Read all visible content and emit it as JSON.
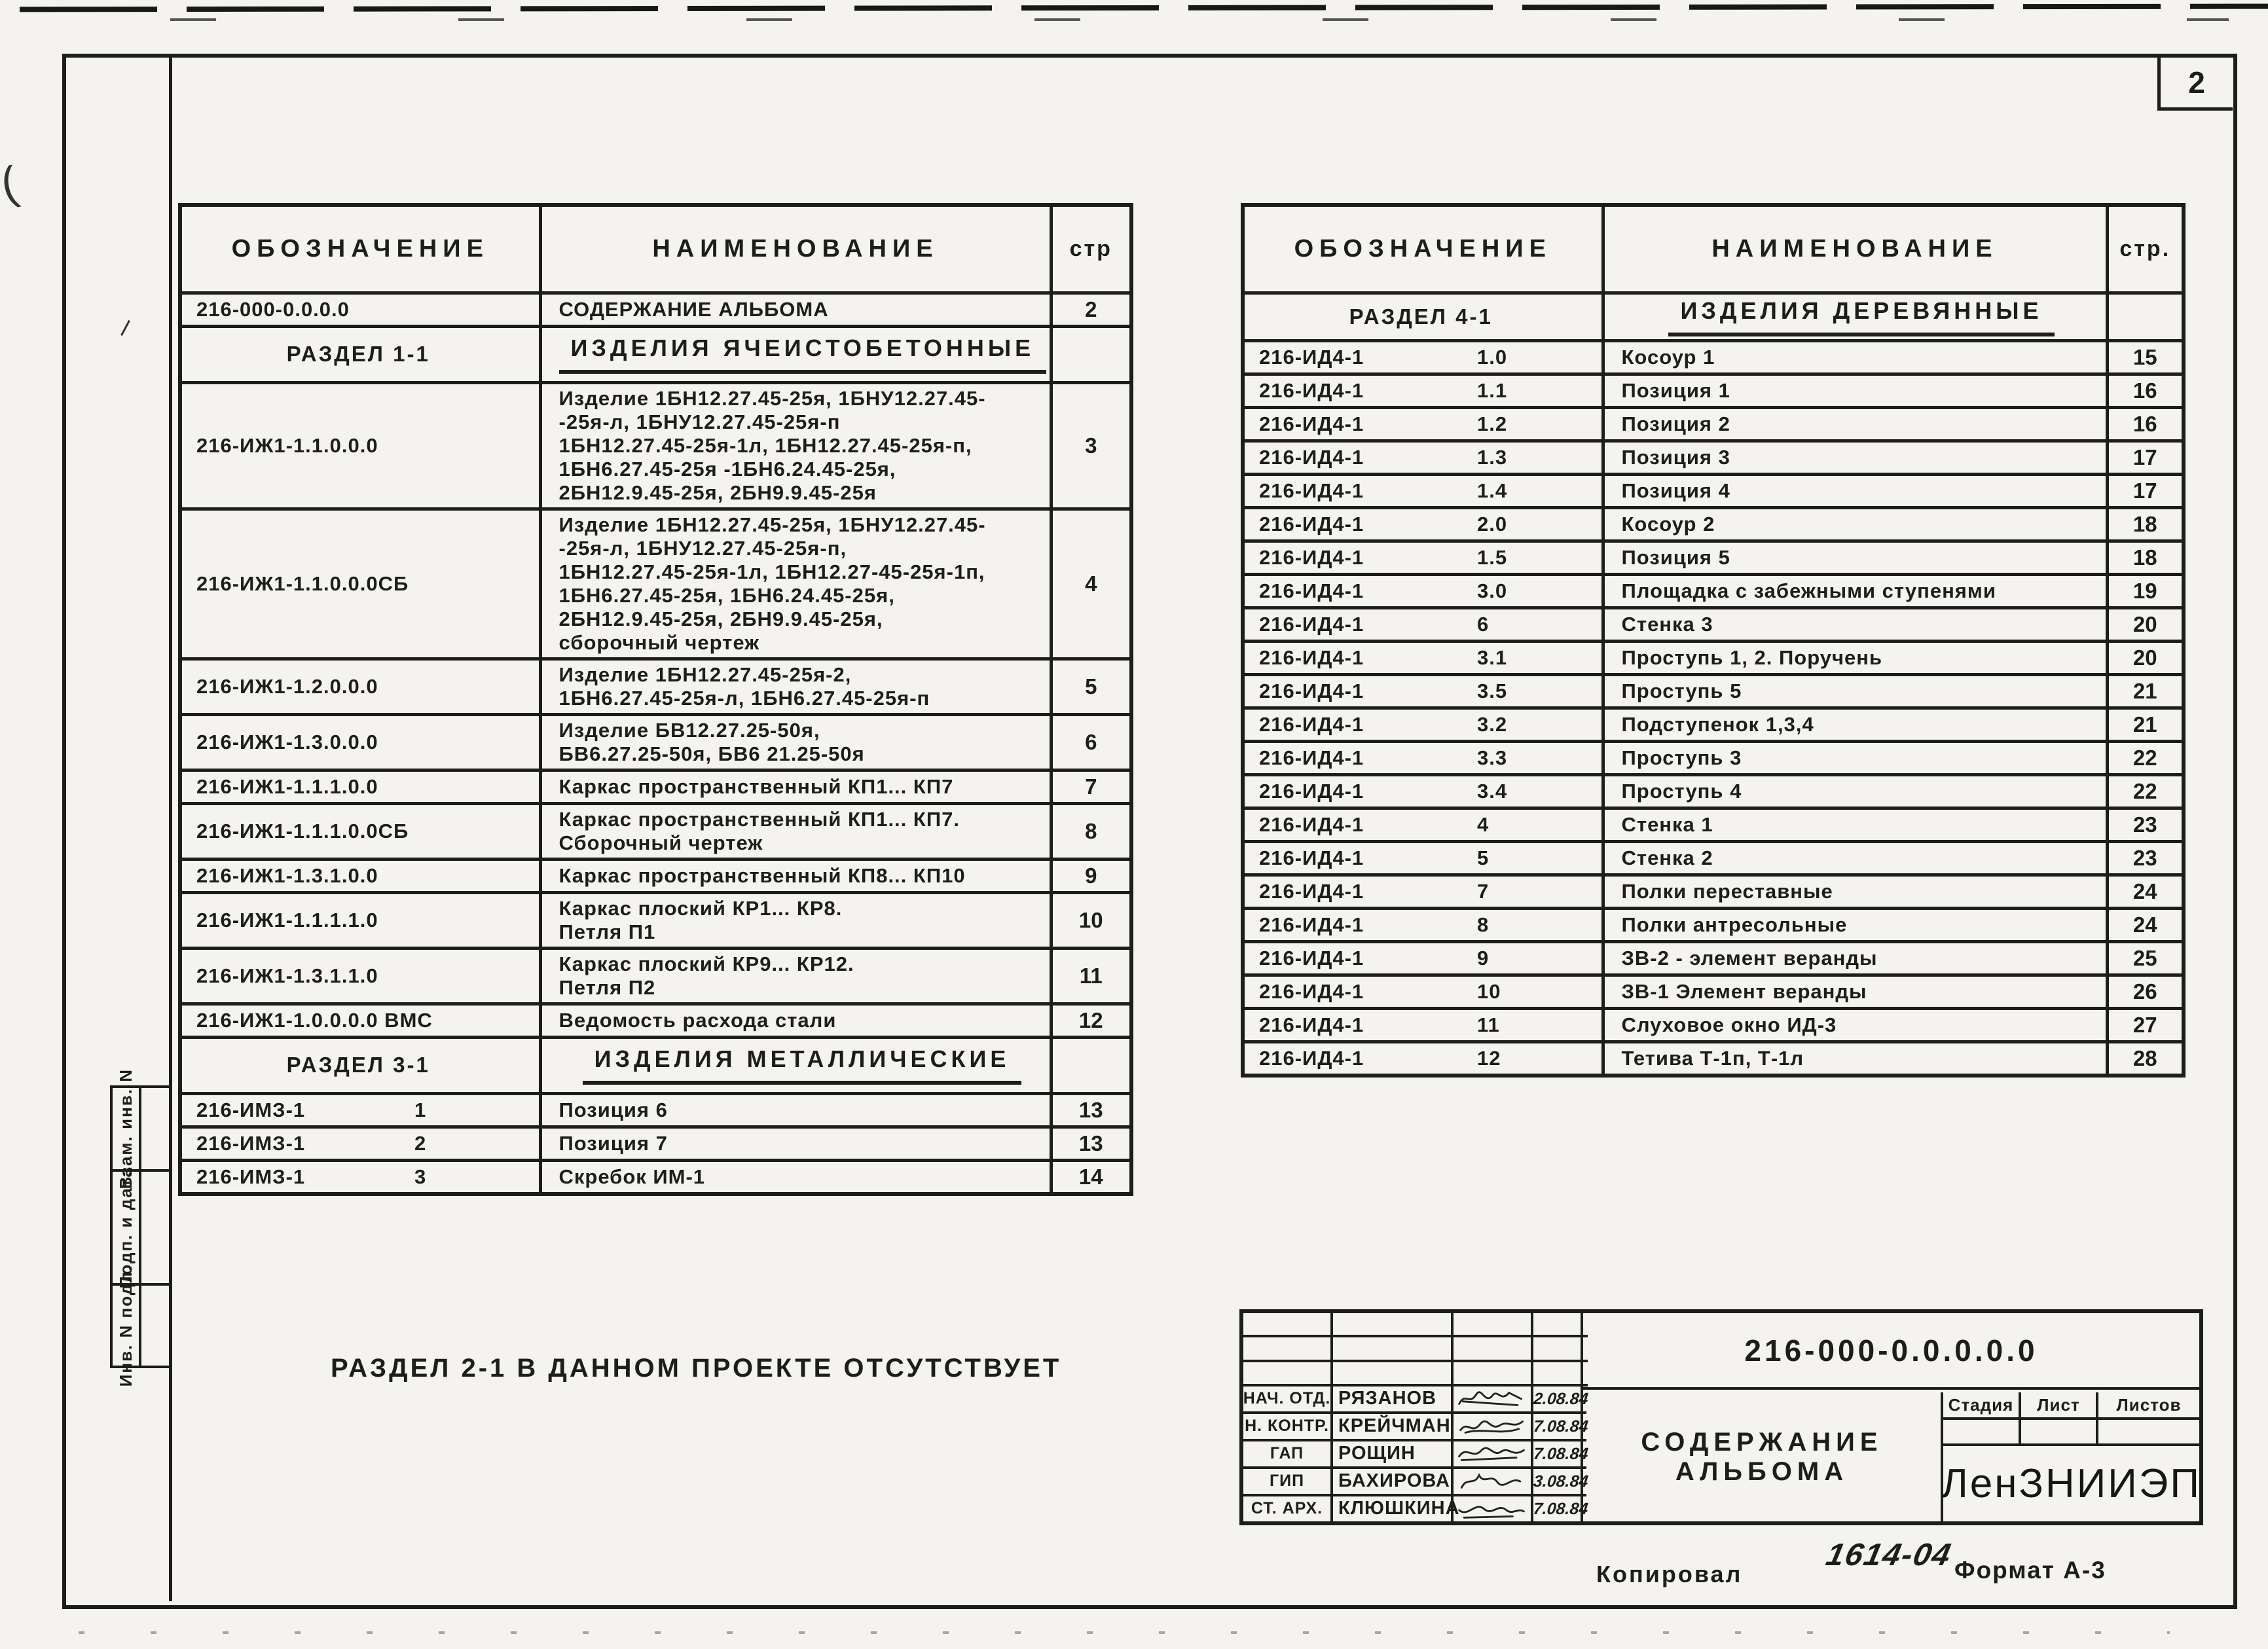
{
  "sheet_number": "2",
  "margin_labels": [
    "Взам. инв. N",
    "Подп. и дата",
    "Инв. N подл."
  ],
  "note": "РАЗДЕЛ 2-1 В ДАННОМ ПРОЕКТЕ ОТСУТСТВУЕТ",
  "left_table": {
    "headers": [
      "ОБОЗНАЧЕНИЕ",
      "НАИМЕНОВАНИЕ",
      "стр"
    ],
    "rows": [
      {
        "type": "item",
        "code": "216-000-0.0.0.0",
        "name": "СОДЕРЖАНИЕ АЛЬБОМА",
        "page": "2"
      },
      {
        "type": "section",
        "code": "РАЗДЕЛ 1-1",
        "name": "ИЗДЕЛИЯ ЯЧЕИСТОБЕТОННЫЕ",
        "page": ""
      },
      {
        "type": "item",
        "code": "216-ИЖ1-1.1.0.0.0",
        "name": "Изделие 1БН12.27.45-25я, 1БНУ12.27.45-\n-25я-л, 1БНУ12.27.45-25я-п\n1БН12.27.45-25я-1л, 1БН12.27.45-25я-п,\n1БН6.27.45-25я -1БН6.24.45-25я,\n2БН12.9.45-25я, 2БН9.9.45-25я",
        "page": "3"
      },
      {
        "type": "item",
        "code": "216-ИЖ1-1.1.0.0.0СБ",
        "name": "Изделие 1БН12.27.45-25я, 1БНУ12.27.45-\n-25я-л, 1БНУ12.27.45-25я-п,\n1БН12.27.45-25я-1л, 1БН12.27-45-25я-1п,\n1БН6.27.45-25я, 1БН6.24.45-25я,\n2БН12.9.45-25я, 2БН9.9.45-25я,\nсборочный чертеж",
        "page": "4"
      },
      {
        "type": "item",
        "code": "216-ИЖ1-1.2.0.0.0",
        "name": "Изделие 1БН12.27.45-25я-2,\n1БН6.27.45-25я-л, 1БН6.27.45-25я-п",
        "page": "5"
      },
      {
        "type": "item",
        "code": "216-ИЖ1-1.3.0.0.0",
        "name": "Изделие БВ12.27.25-50я,\nБВ6.27.25-50я, БВ6 21.25-50я",
        "page": "6"
      },
      {
        "type": "item",
        "code": "216-ИЖ1-1.1.1.0.0",
        "name": "Каркас пространственный КП1... КП7",
        "page": "7"
      },
      {
        "type": "item",
        "code": "216-ИЖ1-1.1.1.0.0СБ",
        "name": "Каркас пространственный КП1... КП7.\nСборочный чертеж",
        "page": "8"
      },
      {
        "type": "item",
        "code": "216-ИЖ1-1.3.1.0.0",
        "name": "Каркас пространственный КП8... КП10",
        "page": "9"
      },
      {
        "type": "item",
        "code": "216-ИЖ1-1.1.1.1.0",
        "name": "Каркас плоский КР1... КР8.\nПетля П1",
        "page": "10"
      },
      {
        "type": "item",
        "code": "216-ИЖ1-1.3.1.1.0",
        "name": "Каркас плоский КР9... КР12.\nПетля П2",
        "page": "11"
      },
      {
        "type": "item",
        "code": "216-ИЖ1-1.0.0.0.0 ВМС",
        "name": "Ведомость расхода стали",
        "page": "12"
      },
      {
        "type": "section",
        "code": "РАЗДЕЛ 3-1",
        "name": "ИЗДЕЛИЯ МЕТАЛЛИЧЕСКИЕ",
        "page": ""
      },
      {
        "type": "item",
        "code": "216-ИМЗ-1",
        "num": "1",
        "name": "Позиция 6",
        "page": "13"
      },
      {
        "type": "item",
        "code": "216-ИМЗ-1",
        "num": "2",
        "name": "Позиция 7",
        "page": "13"
      },
      {
        "type": "item",
        "code": "216-ИМЗ-1",
        "num": "3",
        "name": "Скребок ИМ-1",
        "page": "14"
      }
    ]
  },
  "right_table": {
    "headers": [
      "ОБОЗНАЧЕНИЕ",
      "НАИМЕНОВАНИЕ",
      "стр."
    ],
    "rows": [
      {
        "type": "section",
        "code": "РАЗДЕЛ 4-1",
        "name": "ИЗДЕЛИЯ ДЕРЕВЯННЫЕ",
        "page": ""
      },
      {
        "type": "item",
        "code": "216-ИД4-1",
        "num": "1.0",
        "name": "Косоур 1",
        "page": "15"
      },
      {
        "type": "item",
        "code": "216-ИД4-1",
        "num": "1.1",
        "name": "Позиция 1",
        "page": "16"
      },
      {
        "type": "item",
        "code": "216-ИД4-1",
        "num": "1.2",
        "name": "Позиция 2",
        "page": "16"
      },
      {
        "type": "item",
        "code": "216-ИД4-1",
        "num": "1.3",
        "name": "Позиция 3",
        "page": "17"
      },
      {
        "type": "item",
        "code": "216-ИД4-1",
        "num": "1.4",
        "name": "Позиция 4",
        "page": "17"
      },
      {
        "type": "item",
        "code": "216-ИД4-1",
        "num": "2.0",
        "name": "Косоур 2",
        "page": "18"
      },
      {
        "type": "item",
        "code": "216-ИД4-1",
        "num": "1.5",
        "name": "Позиция 5",
        "page": "18"
      },
      {
        "type": "item",
        "code": "216-ИД4-1",
        "num": "3.0",
        "name": "Площадка с забежными ступенями",
        "page": "19"
      },
      {
        "type": "item",
        "code": "216-ИД4-1",
        "num": "6",
        "name": "Стенка 3",
        "page": "20"
      },
      {
        "type": "item",
        "code": "216-ИД4-1",
        "num": "3.1",
        "name": "Проступь 1, 2. Поручень",
        "page": "20"
      },
      {
        "type": "item",
        "code": "216-ИД4-1",
        "num": "3.5",
        "name": "Проступь 5",
        "page": "21"
      },
      {
        "type": "item",
        "code": "216-ИД4-1",
        "num": "3.2",
        "name": "Подступенок 1,3,4",
        "page": "21"
      },
      {
        "type": "item",
        "code": "216-ИД4-1",
        "num": "3.3",
        "name": "Проступь 3",
        "page": "22"
      },
      {
        "type": "item",
        "code": "216-ИД4-1",
        "num": "3.4",
        "name": "Проступь 4",
        "page": "22"
      },
      {
        "type": "item",
        "code": "216-ИД4-1",
        "num": "4",
        "name": "Стенка 1",
        "page": "23"
      },
      {
        "type": "item",
        "code": "216-ИД4-1",
        "num": "5",
        "name": "Стенка 2",
        "page": "23"
      },
      {
        "type": "item",
        "code": "216-ИД4-1",
        "num": "7",
        "name": "Полки переставные",
        "page": "24"
      },
      {
        "type": "item",
        "code": "216-ИД4-1",
        "num": "8",
        "name": "Полки антресольные",
        "page": "24"
      },
      {
        "type": "item",
        "code": "216-ИД4-1",
        "num": "9",
        "name": "ЗВ-2 - элемент веранды",
        "page": "25"
      },
      {
        "type": "item",
        "code": "216-ИД4-1",
        "num": "10",
        "name": "ЗВ-1 Элемент веранды",
        "page": "26"
      },
      {
        "type": "item",
        "code": "216-ИД4-1",
        "num": "11",
        "name": "Слуховое окно ИД-3",
        "page": "27"
      },
      {
        "type": "item",
        "code": "216-ИД4-1",
        "num": "12",
        "name": "Тетива Т-1п, Т-1л",
        "page": "28"
      }
    ]
  },
  "stamp": {
    "doc_number": "216-000-0.0.0.0.0",
    "title": "СОДЕРЖАНИЕ АЛЬБОМА",
    "org": "ЛенЗНИИЭП",
    "stage_label": "Стадия",
    "sheet_label": "Лист",
    "sheets_label": "Листов",
    "staff": [
      {
        "role": "НАЧ. ОТД.",
        "name": "РЯЗАНОВ",
        "date": "2.08.84"
      },
      {
        "role": "Н. КОНТР.",
        "name": "КРЕЙЧМАН",
        "date": "7.08.84"
      },
      {
        "role": "ГАП",
        "name": "РОЩИН",
        "date": "7.08.84"
      },
      {
        "role": "ГИП",
        "name": "БАХИРОВА",
        "date": "3.08.84"
      },
      {
        "role": "СТ. АРХ.",
        "name": "КЛЮШКИНА",
        "date": "7.08.84"
      }
    ]
  },
  "footer": {
    "copied_label": "Копировал",
    "order_code": "1614-04",
    "format_label": "Формат А-3"
  }
}
